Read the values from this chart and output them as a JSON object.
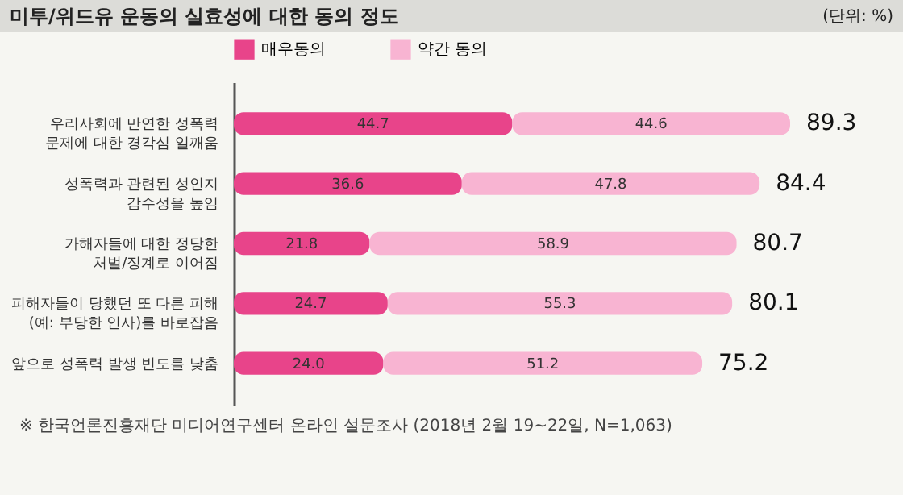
{
  "chart_data": {
    "type": "bar",
    "orientation": "horizontal",
    "stacked": true,
    "title": "미투/위드유 운동의 실효성에 대한 동의 정도",
    "annotations": [
      "(단위: %)",
      "※ 한국언론진흥재단 미디어연구센터 온라인 설문조사 (2018년 2월 19~22일, N=1,063)"
    ],
    "categories": [
      "우리사회에 만연한 성폭력\n문제에 대한 경각심 일깨움",
      "성폭력과 관련된 성인지\n감수성을 높임",
      "가해자들에 대한 정당한\n처벌/징계로 이어짐",
      "피해자들이 당했던 또 다른 피해\n(예: 부당한 인사)를 바로잡음",
      "앞으로 성폭력 발생 빈도를 낮춤"
    ],
    "series": [
      {
        "name": "매우동의",
        "color": "#e8448a",
        "values": [
          44.7,
          36.6,
          21.8,
          24.7,
          24.0
        ],
        "value_labels": [
          "44.7",
          "36.6",
          "21.8",
          "24.7",
          "24.0"
        ]
      },
      {
        "name": "약간 동의",
        "color": "#f8b4d2",
        "values": [
          44.6,
          47.8,
          58.9,
          55.3,
          51.2
        ],
        "value_labels": [
          "44.6",
          "47.8",
          "58.9",
          "55.3",
          "51.2"
        ]
      }
    ],
    "totals": [
      "89.3",
      "84.4",
      "80.7",
      "80.1",
      "75.2"
    ],
    "legend": "top"
  }
}
